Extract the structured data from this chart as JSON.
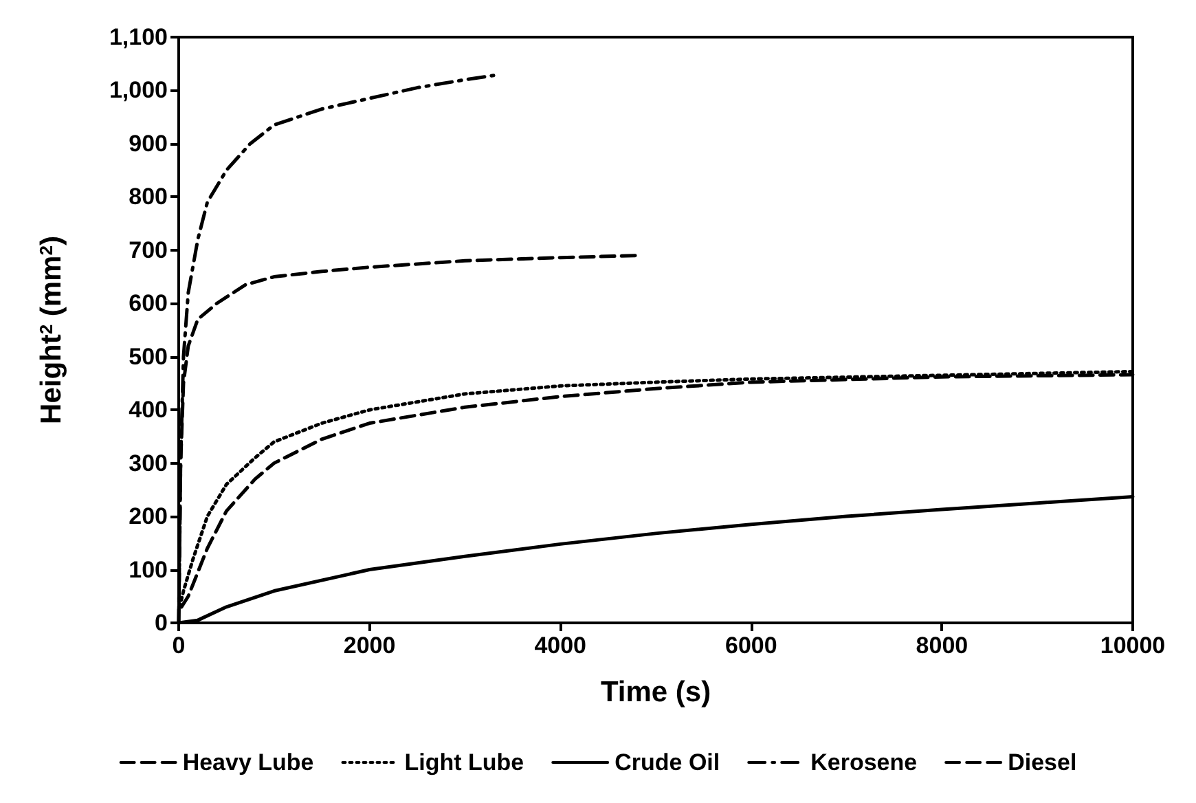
{
  "chart_data": {
    "type": "line",
    "xlabel": "Time (s)",
    "ylabel": "Height$^{2}$ (mm$^{2}$)",
    "xlim": [
      0,
      10000
    ],
    "xticks": [
      0,
      2000,
      4000,
      6000,
      8000,
      10000
    ],
    "ylim": [
      0,
      1100
    ],
    "yticks": [
      0,
      100,
      200,
      300,
      400,
      500,
      600,
      700,
      800,
      900,
      {
        "value": 1000,
        "label": "1,000"
      },
      {
        "value": 1100,
        "label": "1,100"
      }
    ],
    "grid": false,
    "legend": "bottom",
    "marker": "none",
    "series": [
      {
        "name": "Heavy Lube",
        "color": "#000000",
        "line_style": "dashed",
        "x": [
          30,
          100,
          300,
          500,
          800,
          1000,
          1500,
          2000,
          3000,
          4000,
          5000,
          6000,
          8000,
          10000
        ],
        "values": [
          30,
          50,
          140,
          210,
          270,
          300,
          345,
          375,
          405,
          425,
          440,
          452,
          462,
          466
        ]
      },
      {
        "name": "Light Lube",
        "color": "#000000",
        "line_style": "dotted",
        "x": [
          10,
          50,
          150,
          300,
          500,
          800,
          1000,
          1500,
          2000,
          3000,
          4000,
          5000,
          6000,
          8000,
          10000
        ],
        "values": [
          30,
          60,
          120,
          200,
          260,
          310,
          340,
          375,
          400,
          430,
          445,
          452,
          458,
          465,
          472
        ]
      },
      {
        "name": "Crude Oil",
        "color": "#000000",
        "line_style": "solid",
        "x": [
          0,
          200,
          500,
          1000,
          2000,
          3000,
          4000,
          5000,
          6000,
          7000,
          8000,
          9000,
          10000
        ],
        "values": [
          0,
          5,
          30,
          60,
          100,
          125,
          148,
          168,
          185,
          200,
          213,
          225,
          237
        ]
      },
      {
        "name": "Kerosene",
        "color": "#000000",
        "line_style": "dashdot",
        "x": [
          0,
          20,
          50,
          100,
          200,
          300,
          500,
          750,
          1000,
          1500,
          2000,
          2500,
          3000,
          3300
        ],
        "values": [
          0,
          300,
          500,
          620,
          720,
          790,
          850,
          900,
          935,
          965,
          985,
          1005,
          1020,
          1028
        ]
      },
      {
        "name": "Diesel",
        "color": "#000000",
        "line_style": "dashed",
        "x": [
          0,
          20,
          50,
          100,
          200,
          400,
          700,
          1000,
          1500,
          2000,
          3000,
          4000,
          4850
        ],
        "values": [
          0,
          300,
          450,
          520,
          570,
          600,
          635,
          650,
          660,
          668,
          680,
          686,
          690
        ]
      }
    ]
  }
}
